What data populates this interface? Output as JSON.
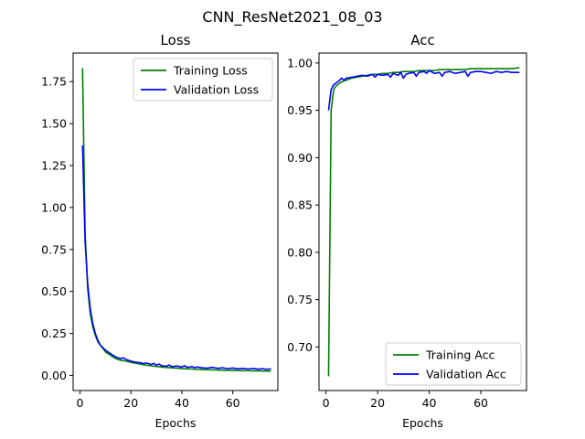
{
  "figure": {
    "suptitle": "CNN_ResNet2021_08_03"
  },
  "chart_data": [
    {
      "type": "line",
      "title": "Loss",
      "xlabel": "Epochs",
      "ylabel": "",
      "xlim": [
        -2.7,
        77.7
      ],
      "ylim": [
        -0.09,
        1.92
      ],
      "xticks": [
        0,
        20,
        40,
        60
      ],
      "yticks": [
        0.0,
        0.25,
        0.5,
        0.75,
        1.0,
        1.25,
        1.5,
        1.75
      ],
      "ytick_labels": [
        "0.00",
        "0.25",
        "0.50",
        "0.75",
        "1.00",
        "1.25",
        "1.50",
        "1.75"
      ],
      "xtick_labels": [
        "0",
        "20",
        "40",
        "60"
      ],
      "grid": false,
      "legend_position": "top-right",
      "series": [
        {
          "name": "Training Loss",
          "color": "#008000",
          "x": [
            1,
            2,
            3,
            4,
            5,
            6,
            7,
            8,
            9,
            10,
            12,
            14,
            16,
            18,
            20,
            22,
            24,
            26,
            28,
            30,
            32,
            34,
            36,
            38,
            40,
            42,
            44,
            46,
            48,
            50,
            52,
            54,
            56,
            58,
            60,
            62,
            64,
            66,
            68,
            70,
            72,
            75
          ],
          "y": [
            1.83,
            0.85,
            0.52,
            0.37,
            0.29,
            0.24,
            0.2,
            0.18,
            0.16,
            0.14,
            0.12,
            0.1,
            0.09,
            0.085,
            0.078,
            0.072,
            0.066,
            0.061,
            0.057,
            0.053,
            0.05,
            0.047,
            0.045,
            0.043,
            0.041,
            0.039,
            0.038,
            0.036,
            0.035,
            0.034,
            0.033,
            0.032,
            0.031,
            0.03,
            0.03,
            0.029,
            0.028,
            0.028,
            0.027,
            0.027,
            0.026,
            0.026
          ]
        },
        {
          "name": "Validation Loss",
          "color": "#0000ff",
          "x": [
            1,
            2,
            3,
            4,
            5,
            6,
            7,
            8,
            9,
            10,
            12,
            14,
            16,
            17,
            18,
            20,
            22,
            24,
            25,
            26,
            28,
            29,
            30,
            31,
            32,
            34,
            35,
            36,
            38,
            40,
            41,
            42,
            44,
            45,
            46,
            48,
            50,
            52,
            54,
            56,
            58,
            60,
            62,
            64,
            66,
            68,
            70,
            72,
            73,
            75
          ],
          "y": [
            1.37,
            0.8,
            0.55,
            0.4,
            0.31,
            0.25,
            0.21,
            0.18,
            0.165,
            0.15,
            0.13,
            0.11,
            0.1,
            0.105,
            0.095,
            0.085,
            0.078,
            0.075,
            0.07,
            0.074,
            0.065,
            0.072,
            0.06,
            0.068,
            0.058,
            0.055,
            0.062,
            0.052,
            0.056,
            0.05,
            0.058,
            0.048,
            0.052,
            0.046,
            0.05,
            0.045,
            0.043,
            0.048,
            0.042,
            0.045,
            0.04,
            0.044,
            0.039,
            0.042,
            0.038,
            0.041,
            0.037,
            0.04,
            0.036,
            0.039
          ]
        }
      ]
    },
    {
      "type": "line",
      "title": "Acc",
      "xlabel": "Epochs",
      "ylabel": "",
      "xlim": [
        -2.7,
        77.7
      ],
      "ylim": [
        0.654,
        1.0105
      ],
      "xticks": [
        0,
        20,
        40,
        60
      ],
      "yticks": [
        0.7,
        0.75,
        0.8,
        0.85,
        0.9,
        0.95,
        1.0
      ],
      "ytick_labels": [
        "0.70",
        "0.75",
        "0.80",
        "0.85",
        "0.90",
        "0.95",
        "1.00"
      ],
      "xtick_labels": [
        "0",
        "20",
        "40",
        "60"
      ],
      "grid": false,
      "legend_position": "bottom-right",
      "series": [
        {
          "name": "Training Acc",
          "color": "#008000",
          "x": [
            1,
            2,
            3,
            4,
            5,
            6,
            7,
            8,
            10,
            12,
            14,
            16,
            18,
            20,
            22,
            24,
            26,
            28,
            30,
            32,
            34,
            36,
            38,
            40,
            42,
            44,
            46,
            48,
            50,
            52,
            54,
            56,
            58,
            60,
            62,
            64,
            66,
            68,
            70,
            72,
            75
          ],
          "y": [
            0.669,
            0.95,
            0.972,
            0.976,
            0.978,
            0.98,
            0.981,
            0.982,
            0.984,
            0.985,
            0.986,
            0.987,
            0.988,
            0.988,
            0.989,
            0.989,
            0.99,
            0.99,
            0.991,
            0.991,
            0.991,
            0.992,
            0.992,
            0.992,
            0.992,
            0.993,
            0.993,
            0.993,
            0.993,
            0.993,
            0.993,
            0.994,
            0.994,
            0.994,
            0.994,
            0.994,
            0.994,
            0.994,
            0.994,
            0.994,
            0.995
          ]
        },
        {
          "name": "Validation Acc",
          "color": "#0000ff",
          "x": [
            1,
            2,
            3,
            4,
            5,
            6,
            7,
            8,
            10,
            12,
            14,
            16,
            18,
            19,
            20,
            22,
            24,
            25,
            26,
            28,
            29,
            30,
            31,
            32,
            34,
            35,
            36,
            38,
            39,
            40,
            42,
            44,
            45,
            46,
            48,
            50,
            52,
            54,
            55,
            56,
            58,
            60,
            62,
            64,
            66,
            68,
            70,
            72,
            75
          ],
          "y": [
            0.95,
            0.972,
            0.977,
            0.979,
            0.981,
            0.984,
            0.982,
            0.984,
            0.985,
            0.986,
            0.987,
            0.986,
            0.988,
            0.985,
            0.988,
            0.987,
            0.988,
            0.985,
            0.989,
            0.987,
            0.99,
            0.984,
            0.988,
            0.989,
            0.99,
            0.986,
            0.99,
            0.991,
            0.989,
            0.992,
            0.989,
            0.99,
            0.986,
            0.99,
            0.991,
            0.989,
            0.99,
            0.991,
            0.986,
            0.99,
            0.991,
            0.991,
            0.99,
            0.989,
            0.991,
            0.99,
            0.991,
            0.99,
            0.99
          ]
        }
      ]
    }
  ]
}
